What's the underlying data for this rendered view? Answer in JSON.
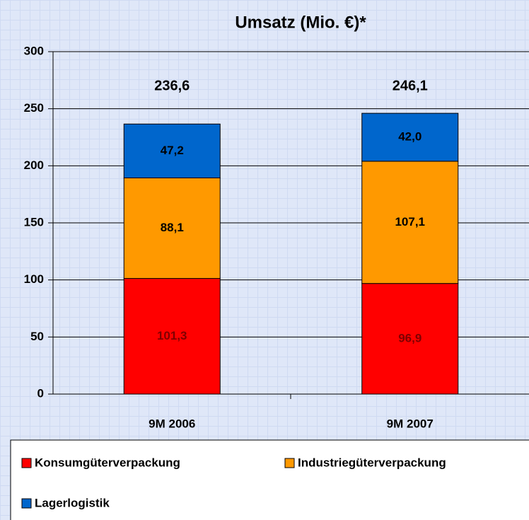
{
  "chart_data": {
    "type": "stacked_bar",
    "title": "Umsatz (Mio. €)*",
    "categories": [
      "9M 2006",
      "9M 2007"
    ],
    "series": [
      {
        "name": "Konsumgüterverpackung",
        "color": "#ff0000",
        "label_color": "#800000",
        "values": [
          101.3,
          96.9
        ],
        "value_labels": [
          "101,3",
          "96,9"
        ]
      },
      {
        "name": "Industriegüterverpackung",
        "color": "#ff9900",
        "label_color": "#000000",
        "values": [
          88.1,
          107.1
        ],
        "value_labels": [
          "88,1",
          "107,1"
        ]
      },
      {
        "name": "Lagerlogistik",
        "color": "#0066cc",
        "label_color": "#000000",
        "values": [
          47.2,
          42.0
        ],
        "value_labels": [
          "47,2",
          "42,0"
        ]
      }
    ],
    "totals": {
      "values": [
        236.6,
        246.1
      ],
      "value_labels": [
        "236,6",
        "246,1"
      ]
    },
    "ylim": [
      0,
      300
    ],
    "yticks": [
      0,
      50,
      100,
      150,
      200,
      250,
      300
    ],
    "grid": true
  }
}
